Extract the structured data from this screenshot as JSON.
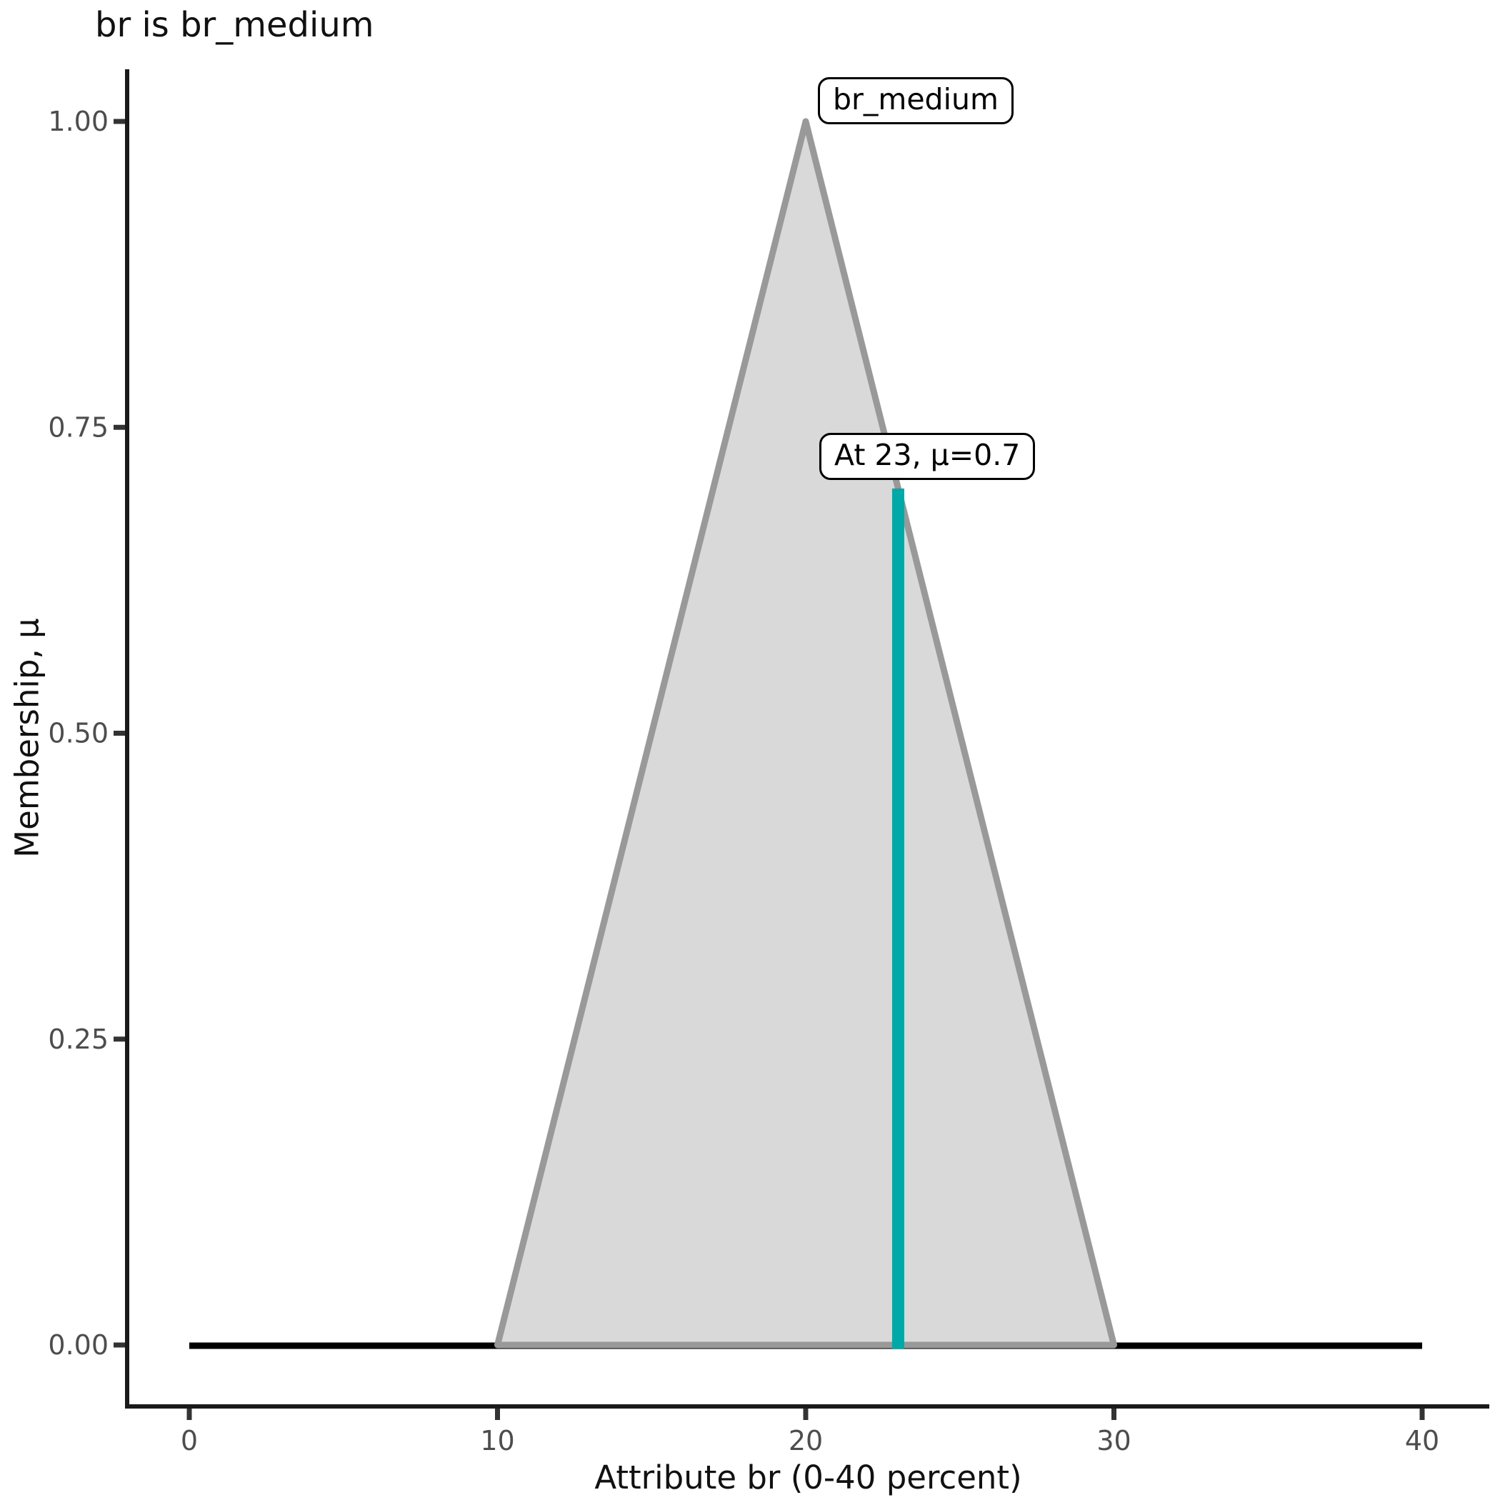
{
  "title": "br is br_medium",
  "axes": {
    "x_label": "Attribute br (0-40 percent)",
    "y_label": "Membership, μ",
    "x_tick_labels": [
      "0",
      "10",
      "20",
      "30",
      "40"
    ],
    "y_tick_labels": [
      "0.00",
      "0.25",
      "0.50",
      "0.75",
      "1.00"
    ]
  },
  "annotations": {
    "set_label": "br_medium",
    "value_label": "At 23, μ=0.7"
  },
  "colors": {
    "set_fill": "#d9d9d9",
    "set_stroke": "#999999",
    "value_line": "#00a8a8",
    "baseline": "#000000",
    "spine": "#1a1a1a",
    "tick_mark": "#333333",
    "tick_label": "#4d4d4d",
    "text": "#111111"
  },
  "chart_data": {
    "type": "area",
    "title": "br is br_medium",
    "xlabel": "Attribute br (0-40 percent)",
    "ylabel": "Membership, μ",
    "xlim": [
      0,
      40
    ],
    "ylim": [
      0,
      1
    ],
    "x_ticks": [
      0,
      10,
      20,
      30,
      40
    ],
    "y_ticks": [
      0.0,
      0.25,
      0.5,
      0.75,
      1.0
    ],
    "grid": false,
    "legend": "none",
    "series": [
      {
        "name": "universe_baseline",
        "kind": "line",
        "color": "#000000",
        "points": [
          [
            0,
            0
          ],
          [
            40,
            0
          ]
        ]
      },
      {
        "name": "br_medium_membership_function",
        "kind": "filled-line",
        "shape": "triangular",
        "fill": "#d9d9d9",
        "stroke": "#999999",
        "points": [
          [
            10,
            0
          ],
          [
            20,
            1
          ],
          [
            30,
            0
          ]
        ]
      },
      {
        "name": "crisp_value_membership",
        "kind": "vline",
        "color": "#00a8a8",
        "x": 23,
        "mu": 0.7,
        "points": [
          [
            23,
            0
          ],
          [
            23,
            0.7
          ]
        ]
      }
    ],
    "annotations": [
      {
        "text": "br_medium",
        "x": 20.4,
        "y": 1.02
      },
      {
        "text": "At 23, μ=0.7",
        "x": 20.4,
        "y": 0.73
      }
    ]
  }
}
